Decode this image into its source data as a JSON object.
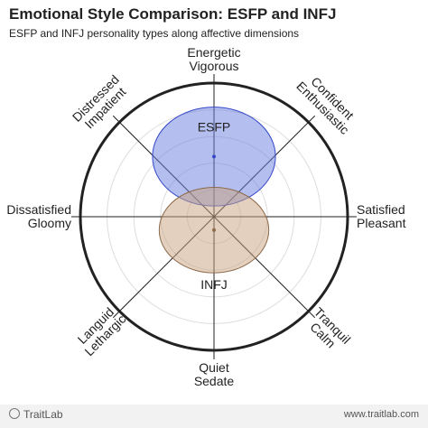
{
  "title": "Emotional Style Comparison: ESFP and INFJ",
  "subtitle": "ESFP and INFJ personality types along affective dimensions",
  "footer": {
    "brand": "TraitLab",
    "url": "www.traitlab.com"
  },
  "chart_data": {
    "type": "radar-ellipse",
    "rings": 4,
    "axes": [
      {
        "id": "top",
        "lines": [
          "Energetic",
          "Vigorous"
        ],
        "angle": 90
      },
      {
        "id": "top-right",
        "lines": [
          "Confident",
          "Enthusiastic"
        ],
        "angle": 45
      },
      {
        "id": "right",
        "lines": [
          "Satisfied",
          "Pleasant"
        ],
        "angle": 0
      },
      {
        "id": "bottom-right",
        "lines": [
          "Tranquil",
          "Calm"
        ],
        "angle": -45
      },
      {
        "id": "bottom",
        "lines": [
          "Quiet",
          "Sedate"
        ],
        "angle": -90
      },
      {
        "id": "bottom-left",
        "lines": [
          "Languid",
          "Lethargic"
        ],
        "angle": -135
      },
      {
        "id": "left",
        "lines": [
          "Dissatisfied",
          "Gloomy"
        ],
        "angle": 180
      },
      {
        "id": "top-left",
        "lines": [
          "Distressed",
          "Impatient"
        ],
        "angle": 135
      }
    ],
    "series": [
      {
        "name": "ESFP",
        "fill": "#6b7fe0",
        "stroke": "#3347c8",
        "label_color": "#3b55d9",
        "center": [
          0.0,
          0.45
        ],
        "radii": [
          0.46,
          0.37
        ],
        "label_offset": 0.68
      },
      {
        "name": "INFJ",
        "fill": "#c9a27d",
        "stroke": "#8c6a4a",
        "label_color": "#9c6b3c",
        "center": [
          0.0,
          -0.1
        ],
        "radii": [
          0.41,
          0.32
        ],
        "label_offset": -0.5
      }
    ]
  }
}
